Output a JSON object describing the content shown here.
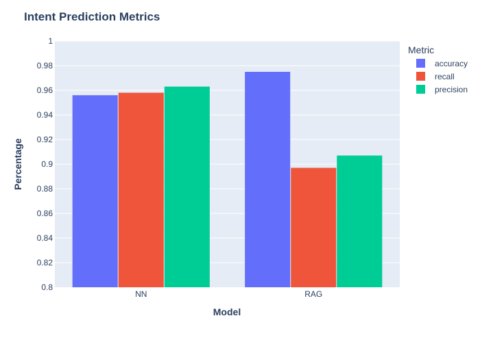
{
  "chart_data": {
    "type": "bar",
    "title": "Intent Prediction Metrics",
    "xlabel": "Model",
    "ylabel": "Percentage",
    "categories": [
      "NN",
      "RAG"
    ],
    "series": [
      {
        "name": "accuracy",
        "values": [
          0.956,
          0.975
        ],
        "color": "#636efa"
      },
      {
        "name": "recall",
        "values": [
          0.958,
          0.897
        ],
        "color": "#ef553b"
      },
      {
        "name": "precision",
        "values": [
          0.963,
          0.907
        ],
        "color": "#00cc96"
      }
    ],
    "ylim": [
      0.8,
      1.0
    ],
    "yticks": [
      "0.8",
      "0.82",
      "0.84",
      "0.86",
      "0.88",
      "0.9",
      "0.92",
      "0.94",
      "0.96",
      "0.98",
      "1"
    ],
    "legend_title": "Metric",
    "legend_position": "top-right",
    "grid": true,
    "colors": {
      "plot_background": "#e5ecf6",
      "grid": "#ffffff",
      "text": "#2a3f5f"
    }
  }
}
